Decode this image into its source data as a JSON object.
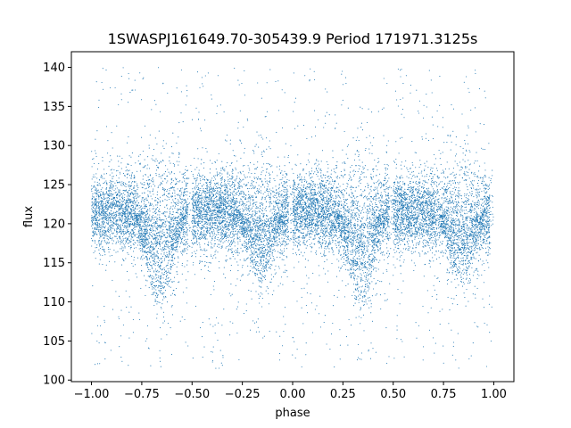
{
  "chart_data": {
    "type": "scatter",
    "title": "1SWASPJ161649.70-305439.9 Period 171971.3125s",
    "xlabel": "phase",
    "ylabel": "flux",
    "xlim": [
      -1.1,
      1.1
    ],
    "ylim": [
      99.8,
      142
    ],
    "xticks": [
      -1.0,
      -0.75,
      -0.5,
      -0.25,
      0.0,
      0.25,
      0.5,
      0.75,
      1.0
    ],
    "xtick_labels": [
      "−1.00",
      "−0.75",
      "−0.50",
      "−0.25",
      "0.00",
      "0.25",
      "0.50",
      "0.75",
      "1.00"
    ],
    "yticks": [
      100,
      105,
      110,
      115,
      120,
      125,
      130,
      135,
      140
    ],
    "ytick_labels": [
      "100",
      "105",
      "110",
      "115",
      "120",
      "125",
      "130",
      "135",
      "140"
    ],
    "grid": false,
    "legend": "none",
    "point_color": "#1f77b4",
    "n_points_approx": 14000,
    "distribution": {
      "baseline_flux": 121.5,
      "core_spread": 2.5,
      "dips": [
        {
          "phase": -0.66,
          "depth": 7,
          "width": 0.06
        },
        {
          "phase": -0.16,
          "depth": 5,
          "width": 0.06
        },
        {
          "phase": 0.34,
          "depth": 7,
          "width": 0.06
        },
        {
          "phase": 0.84,
          "depth": 5,
          "width": 0.06
        }
      ],
      "gaps": [
        {
          "phase": -0.51,
          "width": 0.02
        },
        {
          "phase": -0.01,
          "width": 0.02
        },
        {
          "phase": 0.49,
          "width": 0.02
        },
        {
          "phase": 0.99,
          "width": 0.02
        }
      ]
    }
  }
}
